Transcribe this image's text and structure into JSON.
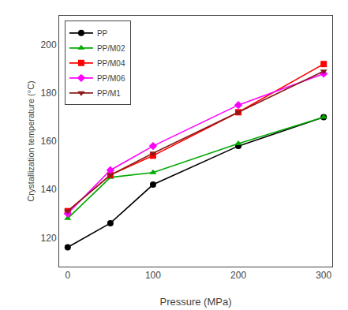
{
  "chart_data": {
    "type": "line",
    "xlabel": "Pressure (MPa)",
    "ylabel": "Crystallization temperature (°C)",
    "x": [
      0,
      50,
      100,
      200,
      300
    ],
    "series": [
      {
        "name": "PP",
        "color": "#000000",
        "marker": "circle",
        "values": [
          116,
          126,
          142,
          158,
          170
        ]
      },
      {
        "name": "PP/M02",
        "color": "#00aa00",
        "marker": "triangle-up",
        "values": [
          128,
          145,
          147,
          159,
          170
        ]
      },
      {
        "name": "PP/M04",
        "color": "#ff0000",
        "marker": "square",
        "values": [
          131,
          146,
          154,
          172,
          192
        ]
      },
      {
        "name": "PP/M06",
        "color": "#ff00ff",
        "marker": "diamond",
        "values": [
          130,
          148,
          158,
          175,
          188
        ]
      },
      {
        "name": "PP/M1",
        "color": "#8b1a1a",
        "marker": "triangle-down",
        "values": [
          131,
          146,
          155,
          172,
          189
        ]
      }
    ],
    "xlim": [
      -10,
      310
    ],
    "ylim": [
      108,
      212
    ],
    "xticks": [
      0,
      100,
      200,
      300
    ],
    "yticks": [
      120,
      140,
      160,
      180,
      200
    ],
    "grid": false,
    "legend": "upper left"
  }
}
